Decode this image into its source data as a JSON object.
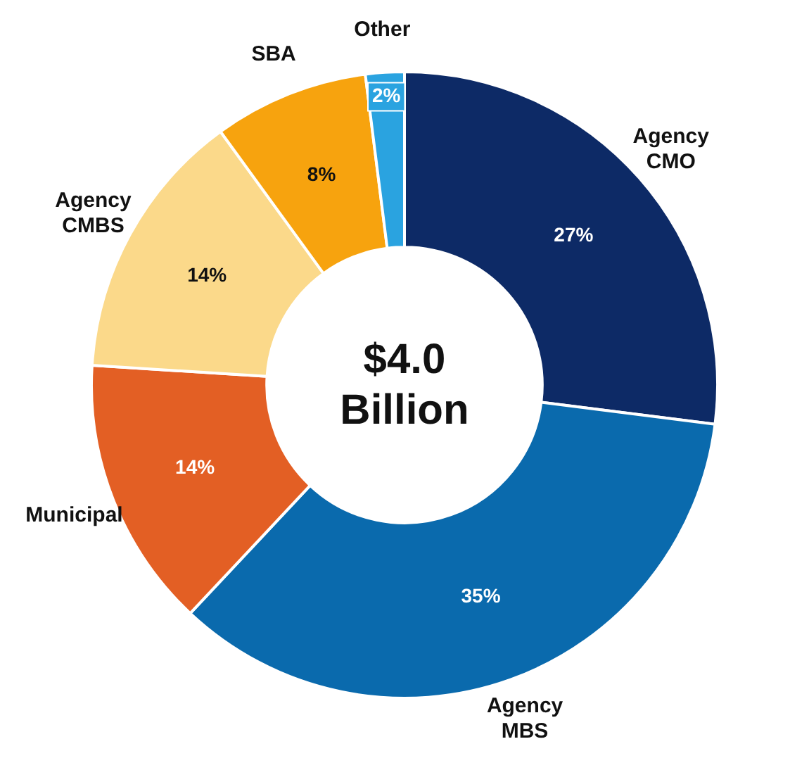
{
  "chart_data": {
    "type": "donut",
    "categories": [
      "Agency CMO",
      "Agency MBS",
      "Municipal",
      "Agency CMBS",
      "SBA",
      "Other"
    ],
    "values": [
      27,
      35,
      14,
      14,
      8,
      2
    ],
    "value_labels": [
      "27%",
      "35%",
      "14%",
      "14%",
      "8%",
      "2%"
    ],
    "colors": [
      "#0d2a66",
      "#0a6aad",
      "#e35f24",
      "#fbd98a",
      "#f7a30e",
      "#2aa3e0"
    ],
    "annotations": [
      "$4.0 Billion"
    ],
    "legend": false
  }
}
